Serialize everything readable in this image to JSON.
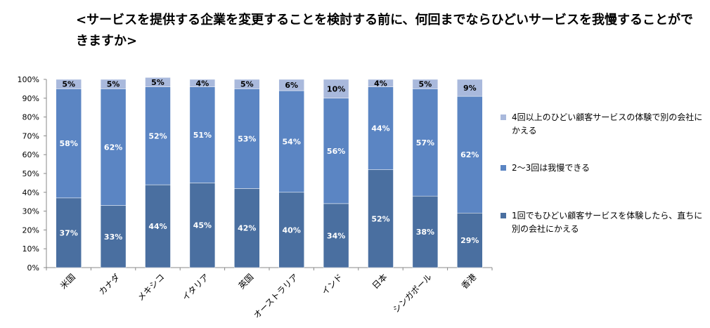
{
  "title": "<サービスを提供する企業を変更することを検討する前に、何回までならひどいサービスを我慢することができますか>",
  "chart_data": {
    "type": "bar",
    "stacked": true,
    "categories": [
      "米国",
      "カナダ",
      "メキシコ",
      "イタリア",
      "英国",
      "オーストラリア",
      "インド",
      "日本",
      "シンガポール",
      "香港"
    ],
    "series": [
      {
        "name": "1回でもひどい顧客サービスを体験したら、直ちに別の会社にかえる",
        "color": "#4a6fa0",
        "values": [
          37,
          33,
          44,
          45,
          42,
          40,
          34,
          52,
          38,
          29
        ]
      },
      {
        "name": "2～3回は我慢できる",
        "color": "#5b85c3",
        "values": [
          58,
          62,
          52,
          51,
          53,
          54,
          56,
          44,
          57,
          62
        ]
      },
      {
        "name": "4回以上のひどい顧客サービスの体験で別の会社にかえる",
        "color": "#a9b9dc",
        "values": [
          5,
          5,
          5,
          4,
          5,
          6,
          10,
          4,
          5,
          9
        ]
      }
    ],
    "data_labels": [
      [
        "37%",
        "33%",
        "44%",
        "45%",
        "42%",
        "40%",
        "34%",
        "52%",
        "38%",
        "29%"
      ],
      [
        "58%",
        "62%",
        "52%",
        "51%",
        "53%",
        "54%",
        "56%",
        "44%",
        "57%",
        "62%"
      ],
      [
        "5%",
        "5%",
        "5%",
        "4%",
        "5%",
        "6%",
        "10%",
        "4%",
        "5%",
        "9%"
      ]
    ],
    "y_ticks": [
      "0%",
      "10%",
      "20%",
      "30%",
      "40%",
      "50%",
      "60%",
      "70%",
      "80%",
      "90%",
      "100%"
    ],
    "ylim": [
      0,
      100
    ],
    "legend_position": "right",
    "grid": false
  }
}
